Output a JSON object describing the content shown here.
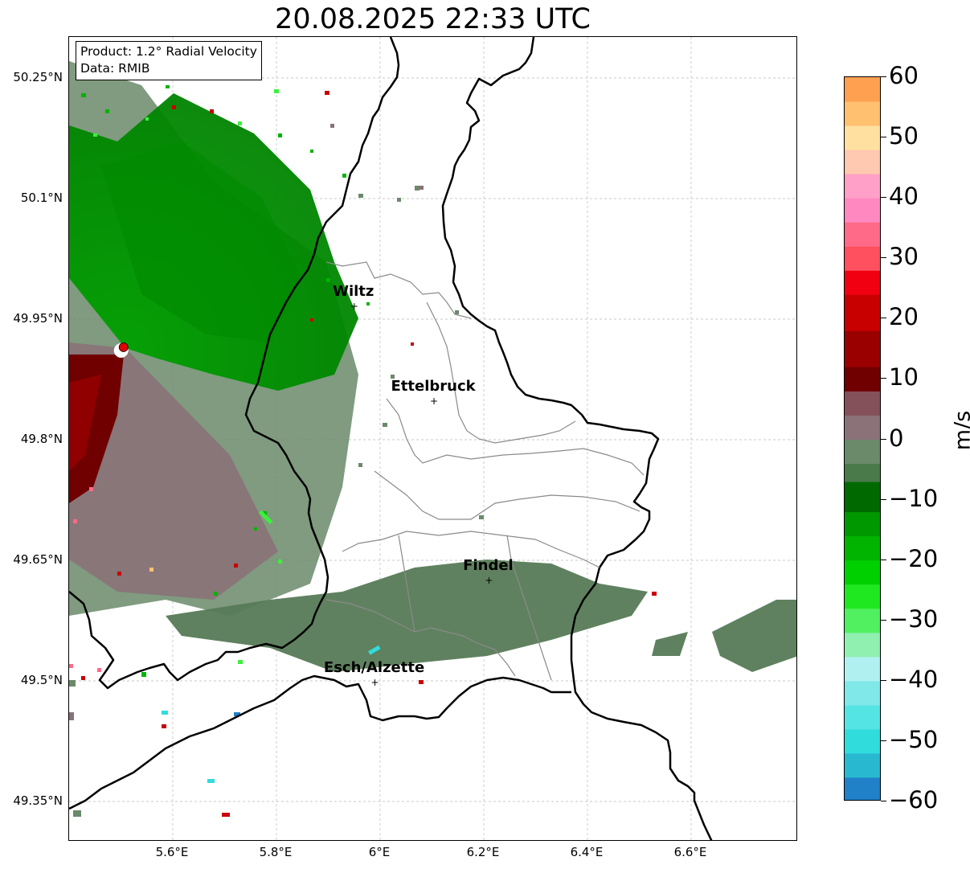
{
  "title": "20.08.2025 22:33 UTC",
  "info": {
    "product": "Product: 1.2° Radial Velocity",
    "data": "Data: RMIB"
  },
  "axes": {
    "lat_labels": [
      {
        "text": "50.25°N",
        "lat": 50.25
      },
      {
        "text": "50.1°N",
        "lat": 50.1
      },
      {
        "text": "49.95°N",
        "lat": 49.95
      },
      {
        "text": "49.8°N",
        "lat": 49.8
      },
      {
        "text": "49.65°N",
        "lat": 49.65
      },
      {
        "text": "49.5°N",
        "lat": 49.5
      },
      {
        "text": "49.35°N",
        "lat": 49.35
      }
    ],
    "lon_labels": [
      {
        "text": "5.6°E",
        "lon": 5.6
      },
      {
        "text": "5.8°E",
        "lon": 5.8
      },
      {
        "text": "6°E",
        "lon": 6.0
      },
      {
        "text": "6.2°E",
        "lon": 6.2
      },
      {
        "text": "6.4°E",
        "lon": 6.4
      },
      {
        "text": "6.6°E",
        "lon": 6.6
      }
    ]
  },
  "cities": [
    {
      "name": "Wiltz",
      "lon": 5.95,
      "lat": 49.966
    },
    {
      "name": "Ettelbruck",
      "lon": 6.104,
      "lat": 49.848
    },
    {
      "name": "Findel",
      "lon": 6.21,
      "lat": 49.625
    },
    {
      "name": "Esch/Alzette",
      "lon": 5.99,
      "lat": 49.498
    }
  ],
  "radar_site": {
    "lon": 5.505,
    "lat": 49.915
  },
  "colorbar": {
    "unit": "m/s",
    "min": -60,
    "max": 60,
    "ticks": [
      {
        "text": "60",
        "value": 60
      },
      {
        "text": "50",
        "value": 50
      },
      {
        "text": "40",
        "value": 40
      },
      {
        "text": "30",
        "value": 30
      },
      {
        "text": "20",
        "value": 20
      },
      {
        "text": "10",
        "value": 10
      },
      {
        "text": "0",
        "value": 0
      },
      {
        "text": "−10",
        "value": -10
      },
      {
        "text": "−20",
        "value": -20
      },
      {
        "text": "−30",
        "value": -30
      },
      {
        "text": "−40",
        "value": -40
      },
      {
        "text": "−50",
        "value": -50
      },
      {
        "text": "−60",
        "value": -60
      }
    ],
    "colors": [
      {
        "from": -60,
        "to": -56,
        "color": "#2080c8"
      },
      {
        "from": -56,
        "to": -52,
        "color": "#28b8d0"
      },
      {
        "from": -52,
        "to": -48,
        "color": "#30dcdc"
      },
      {
        "from": -48,
        "to": -44,
        "color": "#55e4e4"
      },
      {
        "from": -44,
        "to": -40,
        "color": "#80e8e8"
      },
      {
        "from": -40,
        "to": -36,
        "color": "#b0f0f0"
      },
      {
        "from": -36,
        "to": -32,
        "color": "#90f0b0"
      },
      {
        "from": -32,
        "to": -28,
        "color": "#50f060"
      },
      {
        "from": -28,
        "to": -24,
        "color": "#20e820"
      },
      {
        "from": -24,
        "to": -20,
        "color": "#00d000"
      },
      {
        "from": -20,
        "to": -16,
        "color": "#00b400"
      },
      {
        "from": -16,
        "to": -12,
        "color": "#009800"
      },
      {
        "from": -12,
        "to": -7,
        "color": "#006a00"
      },
      {
        "from": -7,
        "to": -4,
        "color": "#4a7a4a"
      },
      {
        "from": -4,
        "to": 0,
        "color": "#6a8a6a"
      },
      {
        "from": 0,
        "to": 4,
        "color": "#8a7278"
      },
      {
        "from": 4,
        "to": 8,
        "color": "#84505a"
      },
      {
        "from": 8,
        "to": 12,
        "color": "#700000"
      },
      {
        "from": 12,
        "to": 18,
        "color": "#9a0000"
      },
      {
        "from": 18,
        "to": 24,
        "color": "#c80000"
      },
      {
        "from": 24,
        "to": 28,
        "color": "#f00010"
      },
      {
        "from": 28,
        "to": 32,
        "color": "#ff5060"
      },
      {
        "from": 32,
        "to": 36,
        "color": "#ff6a88"
      },
      {
        "from": 36,
        "to": 40,
        "color": "#ff88c0"
      },
      {
        "from": 40,
        "to": 44,
        "color": "#ffa0c8"
      },
      {
        "from": 44,
        "to": 48,
        "color": "#ffc8b0"
      },
      {
        "from": 48,
        "to": 52,
        "color": "#ffe0a0"
      },
      {
        "from": 52,
        "to": 56,
        "color": "#ffc070"
      },
      {
        "from": 56,
        "to": 60,
        "color": "#ffa050"
      }
    ]
  }
}
